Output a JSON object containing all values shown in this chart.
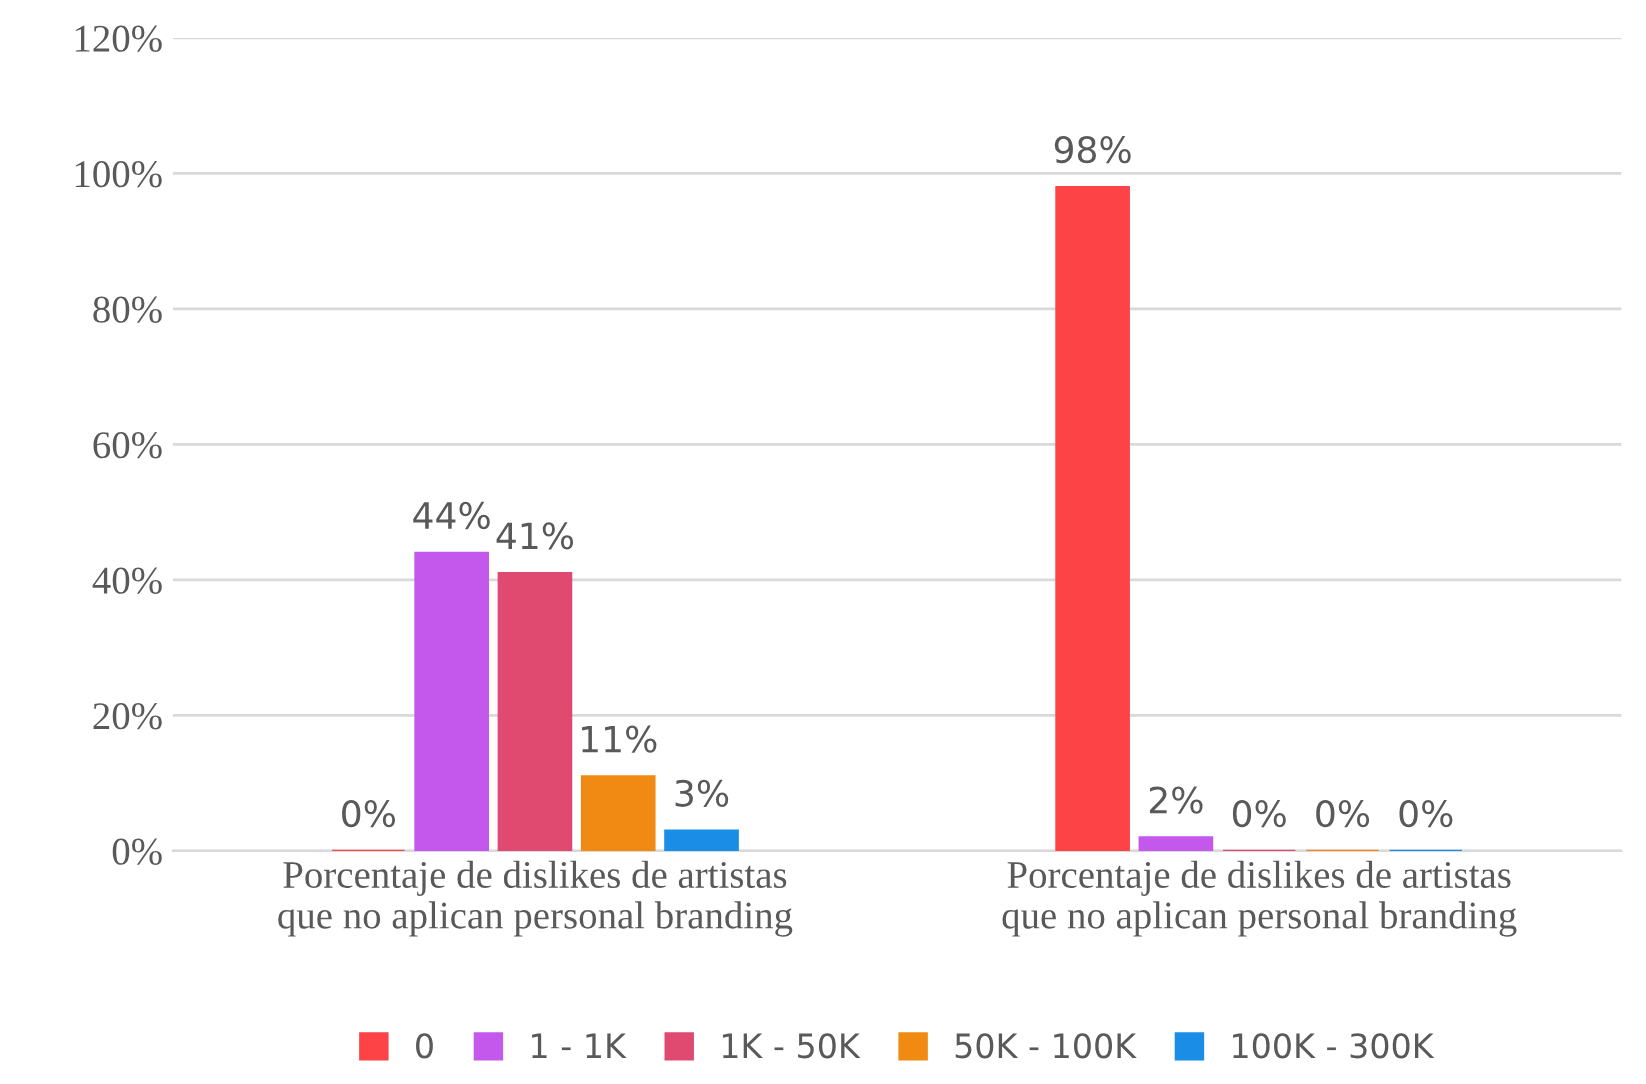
{
  "chart_data": {
    "type": "bar",
    "categories": [
      "Porcentaje de dislikes de artistas que no aplican personal branding",
      "Porcentaje de dislikes de artistas que no aplican personal branding"
    ],
    "series": [
      {
        "name": "0",
        "color": "#fd4346",
        "values": [
          0,
          98
        ],
        "value_labels": [
          "0%",
          "98%"
        ]
      },
      {
        "name": "1 - 1K",
        "color": "#c558ec",
        "values": [
          44,
          2
        ],
        "value_labels": [
          "44%",
          "2%"
        ]
      },
      {
        "name": "1K - 50K",
        "color": "#e04a70",
        "values": [
          41,
          0
        ],
        "value_labels": [
          "41%",
          "0%"
        ]
      },
      {
        "name": "50K - 100K",
        "color": "#f08a12",
        "values": [
          11,
          0
        ],
        "value_labels": [
          "11%",
          "0%"
        ]
      },
      {
        "name": "100K - 300K",
        "color": "#1a8ee6",
        "values": [
          3,
          0
        ],
        "value_labels": [
          "3%",
          "0%"
        ]
      }
    ],
    "ylim": [
      0,
      120
    ],
    "yticks": [
      {
        "value": 0,
        "label": "0%"
      },
      {
        "value": 20,
        "label": "20%"
      },
      {
        "value": 40,
        "label": "40%"
      },
      {
        "value": 60,
        "label": "60%"
      },
      {
        "value": 80,
        "label": "80%"
      },
      {
        "value": 100,
        "label": "100%"
      },
      {
        "value": 120,
        "label": "120%"
      }
    ],
    "grid": "y",
    "legend": "bottom"
  }
}
